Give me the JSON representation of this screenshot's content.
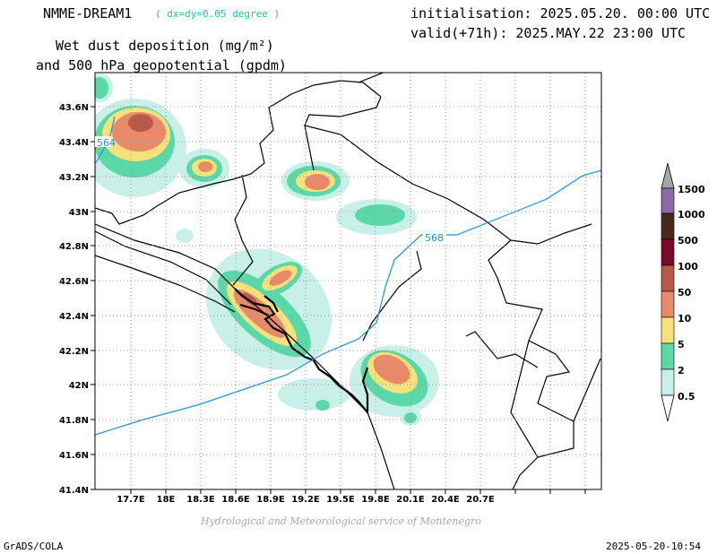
{
  "header": {
    "model": "NMME-DREAM1",
    "resolution": "( dx=dy=0.05 degree )",
    "initialisation": "initialisation: 2025.05.20. 00:00 UTC",
    "valid": "valid(+71h): 2025.MAY.22 23:00 UTC",
    "title_line1": "Wet dust deposition (mg/m²)",
    "title_line2": "and 500 hPa geopotential (gpdm)"
  },
  "map": {
    "lon_labels": [
      "17.7E",
      "18E",
      "18.3E",
      "18.6E",
      "18.9E",
      "19.2E",
      "19.5E",
      "19.8E",
      "20.1E",
      "20.4E",
      "20.7E"
    ],
    "lat_labels": [
      "43.6N",
      "43.4N",
      "43.2N",
      "43N",
      "42.8N",
      "42.6N",
      "42.4N",
      "42.2N",
      "42N",
      "41.8N",
      "41.6N",
      "41.4N"
    ],
    "contour_labels": [
      "564",
      "568"
    ],
    "contour_color": "#1e8fe8"
  },
  "legend": {
    "levels": [
      "1500",
      "1000",
      "500",
      "100",
      "50",
      "10",
      "5",
      "2",
      "0.5"
    ],
    "colors": [
      "#a6a6a6",
      "#8a6aa8",
      "#4a2a1a",
      "#7a0a2a",
      "#b85a4a",
      "#e88a6a",
      "#f8e07a",
      "#5ad8a8",
      "#c8f0e8"
    ]
  },
  "credit": "Hydrological and Meteorological service of Montenegro",
  "footer": {
    "left": "GrADS/COLA",
    "right": "2025-05-20-10:54"
  }
}
